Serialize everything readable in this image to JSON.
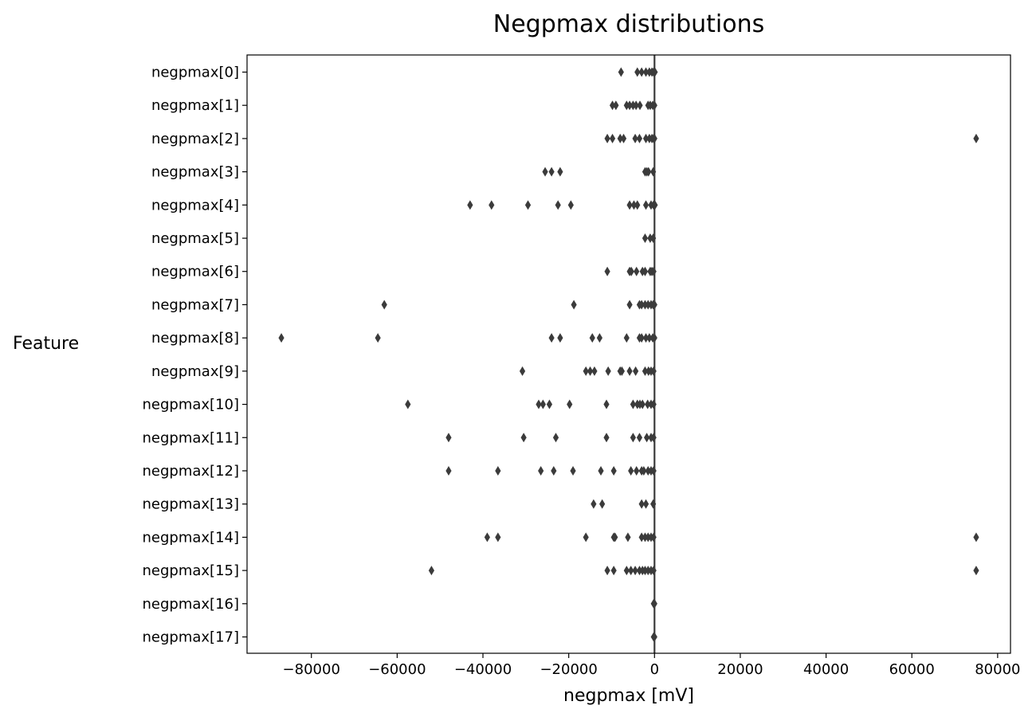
{
  "chart_data": {
    "type": "box",
    "orientation": "horizontal",
    "title": "Negpmax distributions",
    "xlabel": "negpmax [mV]",
    "ylabel": "Feature",
    "xlim": [
      -95000,
      83000
    ],
    "xticks": [
      -80000,
      -60000,
      -40000,
      -20000,
      0,
      20000,
      40000,
      60000,
      80000
    ],
    "xtick_labels": [
      "−80000",
      "−60000",
      "−40000",
      "−20000",
      "0",
      "20000",
      "40000",
      "60000",
      "80000"
    ],
    "categories": [
      "negpmax[0]",
      "negpmax[1]",
      "negpmax[2]",
      "negpmax[3]",
      "negpmax[4]",
      "negpmax[5]",
      "negpmax[6]",
      "negpmax[7]",
      "negpmax[8]",
      "negpmax[9]",
      "negpmax[10]",
      "negpmax[11]",
      "negpmax[12]",
      "negpmax[13]",
      "negpmax[14]",
      "negpmax[15]",
      "negpmax[16]",
      "negpmax[17]"
    ],
    "box_color": "#3b3b3b",
    "outliers": [
      [
        -7800,
        -4000,
        -3000,
        -2000,
        -1200,
        -600,
        -200,
        100
      ],
      [
        -9800,
        -9000,
        -6500,
        -5800,
        -5000,
        -4300,
        -3400,
        -1500,
        -1000,
        -400,
        0
      ],
      [
        -11000,
        -9800,
        -8000,
        -7200,
        -4500,
        -3500,
        -2000,
        -1200,
        -600,
        -200,
        0,
        75000
      ],
      [
        -25500,
        -24000,
        -22000,
        -2200,
        -1800,
        -1400,
        -300
      ],
      [
        -43000,
        -38000,
        -29500,
        -22500,
        -19500,
        -5800,
        -4800,
        -4000,
        -2000,
        -800,
        -200,
        100
      ],
      [
        -2200,
        -1000,
        -300
      ],
      [
        -11000,
        -5800,
        -5400,
        -4200,
        -2800,
        -2200,
        -1000,
        -600,
        -200
      ],
      [
        -63000,
        -18800,
        -5800,
        -3500,
        -3000,
        -2200,
        -1500,
        -800,
        -300,
        0
      ],
      [
        -87000,
        -64500,
        -24000,
        -22000,
        -14500,
        -12800,
        -6500,
        -3500,
        -3000,
        -2000,
        -1200,
        -400,
        0
      ],
      [
        -30800,
        -16000,
        -15000,
        -14000,
        -10800,
        -8000,
        -7600,
        -5800,
        -4400,
        -2200,
        -1400,
        -800,
        -200
      ],
      [
        -57500,
        -27000,
        -26000,
        -24500,
        -19800,
        -11200,
        -5000,
        -4000,
        -3400,
        -2800,
        -1600,
        -800,
        -200
      ],
      [
        -48000,
        -30500,
        -23000,
        -11200,
        -5000,
        -3500,
        -1800,
        -800,
        -200
      ],
      [
        -48000,
        -36500,
        -26500,
        -23500,
        -19000,
        -12500,
        -9500,
        -5500,
        -4200,
        -3000,
        -2500,
        -1500,
        -800,
        -200
      ],
      [
        -14200,
        -12200,
        -3000,
        -2000,
        -300
      ],
      [
        -39000,
        -36500,
        -16000,
        -9500,
        -9200,
        -6200,
        -3000,
        -2200,
        -1500,
        -800,
        -200,
        75000
      ],
      [
        -52000,
        -11000,
        -9500,
        -6500,
        -5500,
        -4500,
        -3500,
        -2800,
        -2200,
        -1500,
        -800,
        -200,
        75000
      ],
      [
        -200,
        0
      ],
      [
        -200,
        0
      ]
    ]
  }
}
